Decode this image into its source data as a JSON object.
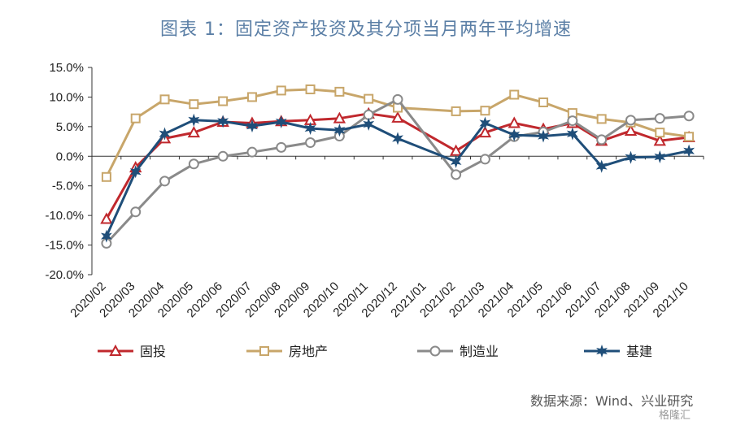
{
  "title": "图表 1：固定资产投资及其分项当月两年平均增速",
  "source": "数据来源：Wind、兴业研究",
  "watermark": "格隆汇",
  "chart_data": {
    "type": "line",
    "title": "图表 1：固定资产投资及其分项当月两年平均增速",
    "xlabel": "",
    "ylabel": "",
    "ylim": [
      -20,
      15
    ],
    "yticks": [
      "15.0%",
      "10.0%",
      "5.0%",
      "0.0%",
      "-5.0%",
      "-10.0%",
      "-15.0%",
      "-20.0%"
    ],
    "ytick_values": [
      15,
      10,
      5,
      0,
      -5,
      -10,
      -15,
      -20
    ],
    "grid": false,
    "legend_position": "bottom",
    "categories": [
      "2020/02",
      "2020/03",
      "2020/04",
      "2020/05",
      "2020/06",
      "2020/07",
      "2020/08",
      "2020/09",
      "2020/10",
      "2020/11",
      "2020/12",
      "2021/01",
      "2021/02",
      "2021/03",
      "2021/04",
      "2021/05",
      "2021/06",
      "2021/07",
      "2021/08",
      "2021/09",
      "2021/10"
    ],
    "series": [
      {
        "name": "固投",
        "color": "#c0282d",
        "marker": "triangle",
        "values": [
          -10.6,
          -1.9,
          3.0,
          4.0,
          5.8,
          5.6,
          5.9,
          6.1,
          6.4,
          7.2,
          6.5,
          null,
          0.9,
          4.0,
          5.6,
          4.6,
          5.6,
          2.6,
          4.3,
          2.6,
          3.2
        ]
      },
      {
        "name": "房地产",
        "color": "#c8a66a",
        "marker": "square",
        "values": [
          -3.5,
          6.4,
          9.6,
          8.8,
          9.3,
          10.0,
          11.1,
          11.3,
          10.9,
          9.7,
          8.2,
          null,
          7.6,
          7.7,
          10.4,
          9.1,
          7.3,
          6.3,
          5.7,
          4.0,
          3.3
        ]
      },
      {
        "name": "制造业",
        "color": "#8a8a8a",
        "marker": "circle",
        "values": [
          -14.7,
          -9.4,
          -4.2,
          -1.3,
          0.0,
          0.7,
          1.5,
          2.3,
          3.4,
          7.0,
          9.6,
          null,
          -3.1,
          -0.5,
          3.3,
          4.1,
          6.0,
          2.8,
          6.1,
          6.4,
          6.8
        ]
      },
      {
        "name": "基建",
        "color": "#1f4e79",
        "marker": "star",
        "values": [
          -13.5,
          -2.6,
          3.8,
          6.1,
          5.9,
          5.1,
          5.8,
          4.7,
          4.4,
          5.4,
          3.0,
          null,
          -0.9,
          5.6,
          3.6,
          3.4,
          3.8,
          -1.7,
          -0.2,
          -0.1,
          0.9
        ]
      }
    ]
  }
}
